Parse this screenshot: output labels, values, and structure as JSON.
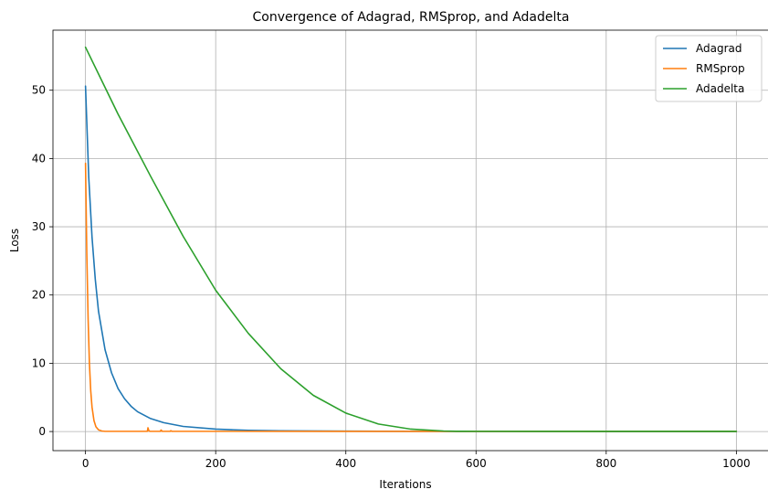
{
  "chart_data": {
    "type": "line",
    "title": "Convergence of Adagrad, RMSprop, and Adadelta",
    "xlabel": "Iterations",
    "ylabel": "Loss",
    "xlim": [
      -50,
      1050
    ],
    "ylim": [
      -2.8,
      58.8
    ],
    "xticks": [
      0,
      200,
      400,
      600,
      800,
      1000
    ],
    "yticks": [
      0,
      10,
      20,
      30,
      40,
      50
    ],
    "grid": true,
    "legend_position": "top-right",
    "series": [
      {
        "name": "Adagrad",
        "color": "#1f77b4",
        "x": [
          0,
          5,
          10,
          15,
          20,
          30,
          40,
          50,
          60,
          70,
          80,
          100,
          120,
          150,
          200,
          250,
          300,
          400,
          500,
          600,
          800,
          1000
        ],
        "y": [
          50.6,
          37.2,
          28.5,
          22.3,
          17.6,
          12.0,
          8.6,
          6.3,
          4.8,
          3.7,
          2.9,
          1.9,
          1.3,
          0.75,
          0.35,
          0.18,
          0.1,
          0.05,
          0.03,
          0.02,
          0.01,
          0.01
        ]
      },
      {
        "name": "RMSprop",
        "color": "#ff7f0e",
        "x": [
          0,
          2,
          4,
          6,
          8,
          10,
          13,
          16,
          20,
          25,
          30,
          60,
          95,
          96,
          97,
          98,
          100,
          115,
          116,
          118,
          130,
          131,
          133,
          200,
          400,
          600,
          800,
          1000
        ],
        "y": [
          39.3,
          26.0,
          16.5,
          10.0,
          6.0,
          3.6,
          1.6,
          0.7,
          0.25,
          0.08,
          0.03,
          0.03,
          0.03,
          0.55,
          0.2,
          0.05,
          0.03,
          0.03,
          0.22,
          0.03,
          0.03,
          0.12,
          0.03,
          0.03,
          0.02,
          0.02,
          0.02,
          0.02
        ]
      },
      {
        "name": "Adadelta",
        "color": "#2ca02c",
        "x": [
          0,
          50,
          100,
          150,
          200,
          250,
          300,
          350,
          400,
          450,
          500,
          550,
          570,
          600,
          700,
          800,
          900,
          1000
        ],
        "y": [
          56.3,
          46.5,
          37.4,
          28.6,
          20.7,
          14.4,
          9.2,
          5.3,
          2.7,
          1.1,
          0.35,
          0.08,
          0.04,
          0.03,
          0.02,
          0.02,
          0.02,
          0.02
        ]
      }
    ]
  }
}
